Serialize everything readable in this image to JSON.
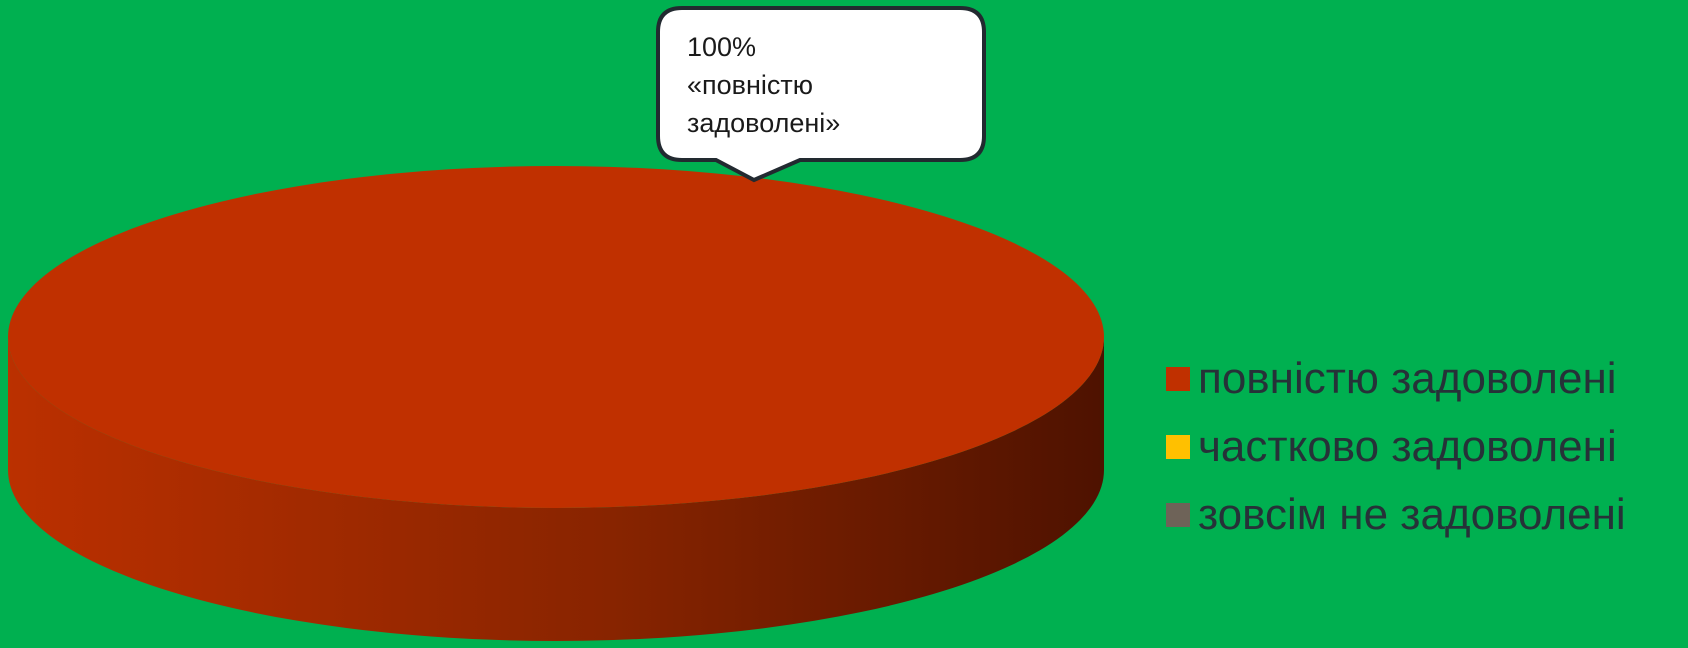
{
  "chart_data": {
    "type": "pie",
    "style": "3d",
    "categories": [
      "повністю задоволені",
      "частково задоволені",
      "зовсім не задоволені"
    ],
    "values": [
      100,
      0,
      0
    ],
    "unit": "%",
    "colors": [
      "#C03000",
      "#FFC000",
      "#6E6358"
    ],
    "data_labels": [
      {
        "category_index": 0,
        "lines": [
          "100%",
          "«повністю",
          "задоволені»"
        ]
      }
    ],
    "legend_position": "right",
    "background": "#00B050"
  }
}
